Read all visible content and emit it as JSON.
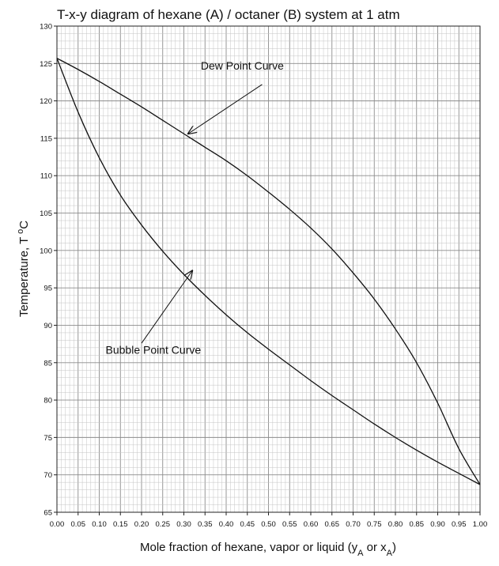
{
  "chart_data": {
    "type": "line",
    "title": "T-x-y diagram of hexane (A) / octaner (B) system at 1 atm",
    "xlabel": "Mole fraction of hexane, vapor or liquid (y",
    "xlabel_sub_a": "A",
    "xlabel_mid": " or x",
    "xlabel_sub_b": "A",
    "xlabel_end": ")",
    "ylabel": "Temperature, T ",
    "ylabel_sup": "o",
    "ylabel_end": "C",
    "xlim": [
      0,
      1
    ],
    "ylim": [
      65,
      130
    ],
    "grid": true,
    "x_ticks": [
      "0.00",
      "0.05",
      "0.10",
      "0.15",
      "0.20",
      "0.25",
      "0.30",
      "0.35",
      "0.40",
      "0.45",
      "0.50",
      "0.55",
      "0.60",
      "0.65",
      "0.70",
      "0.75",
      "0.80",
      "0.85",
      "0.90",
      "0.95",
      "1.00"
    ],
    "y_ticks": [
      "65",
      "70",
      "75",
      "80",
      "85",
      "90",
      "95",
      "100",
      "105",
      "110",
      "115",
      "120",
      "125",
      "130"
    ],
    "series": [
      {
        "name": "Dew Point Curve",
        "x": [
          0.0,
          0.05,
          0.1,
          0.15,
          0.2,
          0.25,
          0.3,
          0.35,
          0.4,
          0.45,
          0.5,
          0.55,
          0.6,
          0.65,
          0.7,
          0.75,
          0.8,
          0.85,
          0.9,
          0.95,
          1.0
        ],
        "y": [
          125.7,
          124.2,
          122.6,
          120.9,
          119.2,
          117.4,
          115.6,
          113.8,
          112.0,
          110.0,
          107.8,
          105.5,
          103.0,
          100.2,
          97.0,
          93.5,
          89.5,
          85.0,
          79.6,
          73.5,
          68.7
        ]
      },
      {
        "name": "Bubble Point Curve",
        "x": [
          0.0,
          0.05,
          0.1,
          0.15,
          0.2,
          0.25,
          0.3,
          0.35,
          0.4,
          0.45,
          0.5,
          0.55,
          0.6,
          0.65,
          0.7,
          0.75,
          0.8,
          0.85,
          0.9,
          0.95,
          1.0
        ],
        "y": [
          125.7,
          118.5,
          112.4,
          107.4,
          103.4,
          99.9,
          96.8,
          94.0,
          91.4,
          89.0,
          86.8,
          84.7,
          82.6,
          80.6,
          78.7,
          76.8,
          75.0,
          73.3,
          71.7,
          70.2,
          68.7
        ]
      }
    ],
    "annotations": [
      {
        "text": "Dew Point Curve",
        "label_x": 0.34,
        "label_y": 124.2,
        "tail_x": 0.485,
        "tail_y": 122.2,
        "head_x": 0.31,
        "head_y": 115.6
      },
      {
        "text": "Bubble Point Curve",
        "label_x": 0.115,
        "label_y": 86.2,
        "tail_x": 0.2,
        "tail_y": 87.6,
        "head_x": 0.32,
        "head_y": 97.3
      }
    ]
  }
}
